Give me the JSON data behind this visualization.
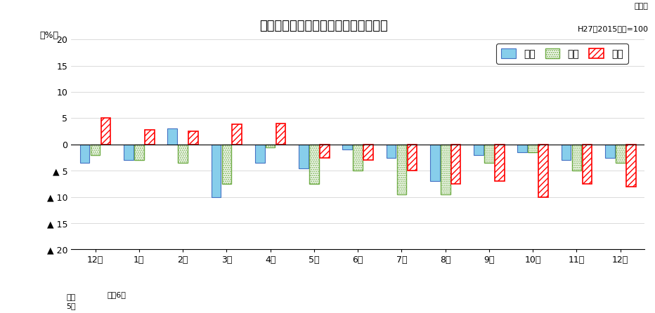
{
  "title": "生産・出荷・在庫の前年同月比の推移",
  "ylabel": "（%）",
  "subtitle_line1": "原指数",
  "subtitle_line2": "H27（2015）年=100",
  "xlabel_note1": "令和\n5年",
  "xlabel_note2": "令和6年",
  "categories": [
    "12月",
    "1月",
    "2月",
    "3月",
    "4月",
    "5月",
    "6月",
    "7月",
    "8月",
    "9月",
    "10月",
    "11月",
    "12月"
  ],
  "production": [
    -3.5,
    -3.0,
    3.0,
    -10.0,
    -3.5,
    -4.5,
    -1.0,
    -2.5,
    -7.0,
    -2.0,
    -1.5,
    -3.0,
    -2.5
  ],
  "shipment": [
    -2.0,
    -3.0,
    -3.5,
    -7.5,
    -0.5,
    -7.5,
    -5.0,
    -9.5,
    -9.5,
    -3.5,
    -1.5,
    -5.0,
    -3.5
  ],
  "inventory": [
    5.0,
    2.8,
    2.5,
    3.8,
    4.0,
    -2.5,
    -3.0,
    -5.0,
    -7.5,
    -7.0,
    -10.0,
    -7.5,
    -8.0
  ],
  "ylim": [
    -20,
    20
  ],
  "yticks": [
    20,
    15,
    10,
    5,
    0,
    -5,
    -10,
    -15,
    -20
  ],
  "production_facecolor": "#87CEEB",
  "production_edgecolor": "#4472c4",
  "shipment_facecolor": "white",
  "shipment_edgecolor": "#70ad47",
  "inventory_facecolor": "white",
  "inventory_edgecolor": "#ff0000",
  "grid_color": "#cccccc",
  "legend_labels": [
    "生産",
    "出荷",
    "在庫"
  ]
}
